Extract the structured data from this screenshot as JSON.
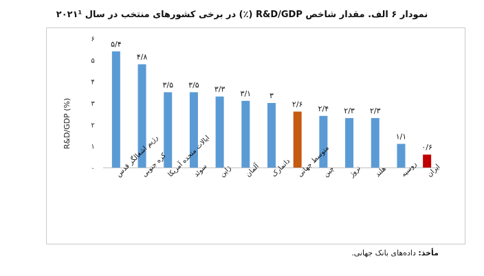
{
  "title": "نمودار ۶ الف. مقدار شاخص R&D/GDP (٪) در برخی کشورهای منتخب در سال ۲۰۲۱¹",
  "source": {
    "label": "مأخذ:",
    "text": "داده‌های بانک جهانی."
  },
  "chart_data": {
    "type": "bar",
    "ylabel": "R&D/GDP (%)",
    "ylim": [
      0,
      6
    ],
    "yticks": [
      "۰",
      "۱",
      "۲",
      "۳",
      "۴",
      "۵",
      "۶"
    ],
    "grid": false,
    "categories": [
      "رژیم اشغالگر قدس",
      "کره جنوبی",
      "ایالات متحده آمریکا",
      "سوئد",
      "ژاپن",
      "آلمان",
      "دانمارک",
      "متوسط جهانی",
      "چین",
      "نروژ",
      "هلند",
      "روسیه",
      "ایران"
    ],
    "values": [
      5.4,
      4.8,
      3.5,
      3.5,
      3.3,
      3.1,
      3.0,
      2.6,
      2.4,
      2.3,
      2.3,
      1.1,
      0.6
    ],
    "data_labels": [
      "۵/۴",
      "۴/۸",
      "۳/۵",
      "۳/۵",
      "۳/۳",
      "۳/۱",
      "۳",
      "۲/۶",
      "۲/۴",
      "۲/۳",
      "۲/۳",
      "۱/۱",
      "۰/۶"
    ],
    "colors": [
      "#5b9bd5",
      "#5b9bd5",
      "#5b9bd5",
      "#5b9bd5",
      "#5b9bd5",
      "#5b9bd5",
      "#5b9bd5",
      "#c55a11",
      "#5b9bd5",
      "#5b9bd5",
      "#5b9bd5",
      "#5b9bd5",
      "#c00000"
    ],
    "axis_color": "#bfbfbf"
  }
}
